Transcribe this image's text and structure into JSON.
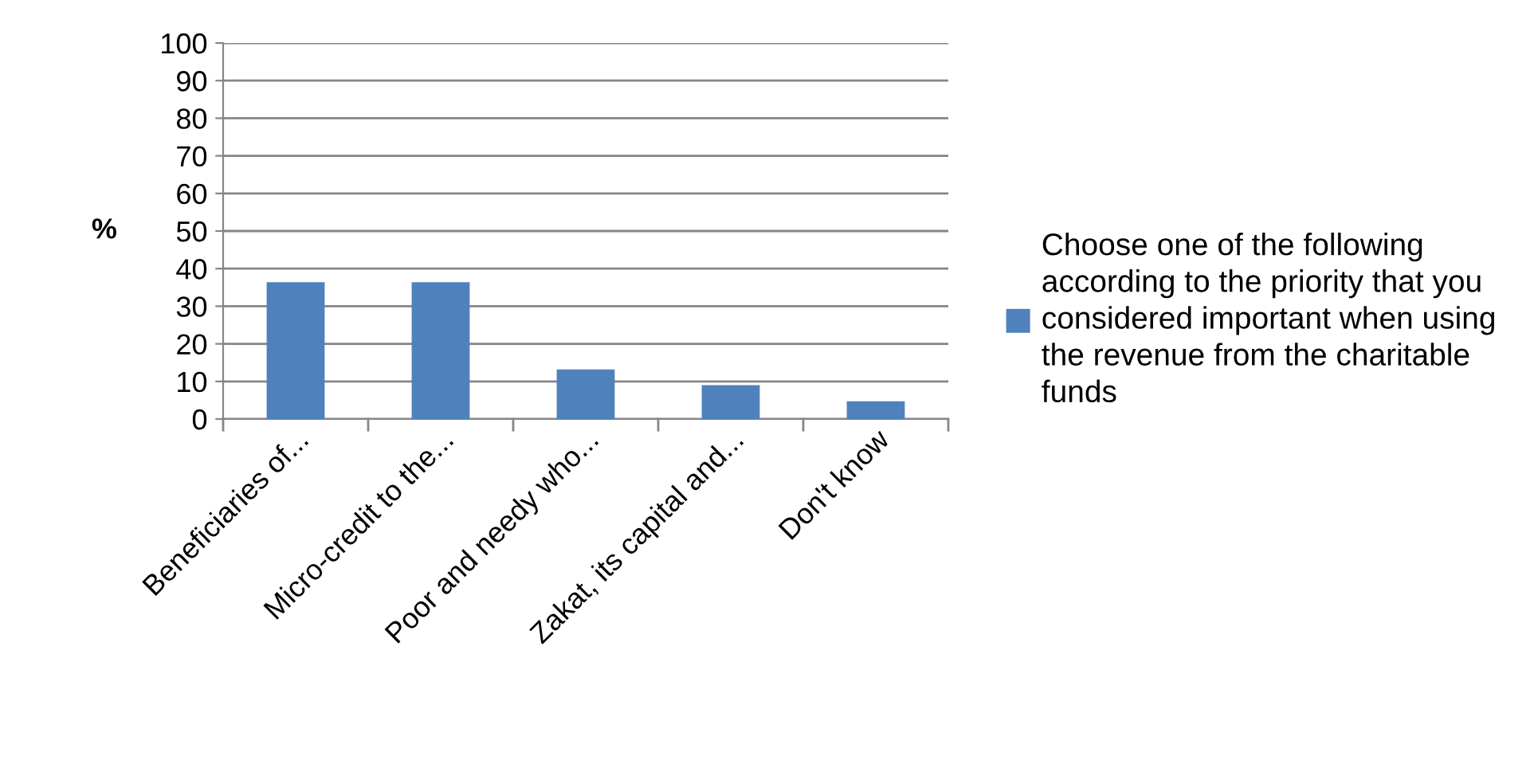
{
  "chart_data": {
    "type": "bar",
    "ylabel": "%",
    "categories": [
      "Beneficiaries of...",
      "Micro-credit to the...",
      "Poor and needy who...",
      "Zakat, its capital and...",
      "Don't know"
    ],
    "series": [
      {
        "name": "Choose one of the following according to the priority that you considered important when using the revenue from the charitable funds",
        "color": "#4f81bd",
        "values": [
          36.4,
          36.4,
          13.2,
          9.0,
          4.7
        ]
      }
    ],
    "ylim": [
      0,
      100
    ],
    "yticks": [
      0,
      10,
      20,
      30,
      40,
      50,
      60,
      70,
      80,
      90,
      100
    ],
    "grid": "y",
    "legend": "right"
  }
}
